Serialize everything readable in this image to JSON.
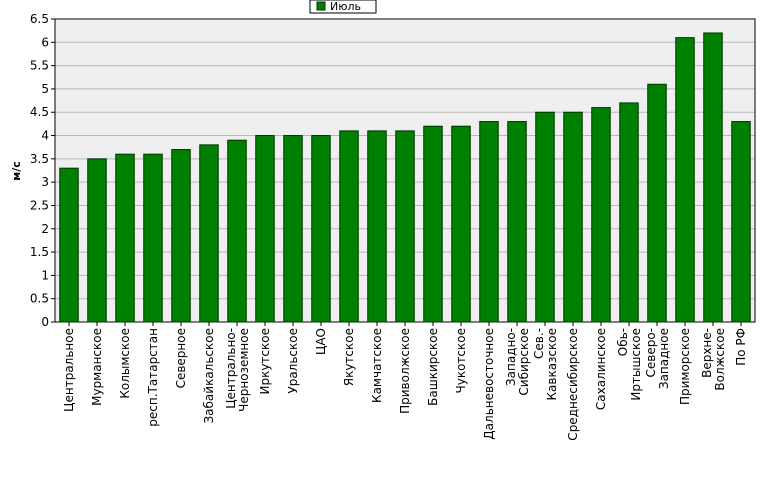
{
  "chart_data": {
    "type": "bar",
    "title": "",
    "xlabel": "",
    "ylabel": "м/с",
    "ylim": [
      0,
      6.5
    ],
    "yticks": [
      "0",
      "0.5",
      "1",
      "1.5",
      "2",
      "2.5",
      "3",
      "3.5",
      "4",
      "4.5",
      "5",
      "5.5",
      "6",
      "6.5"
    ],
    "grid": true,
    "legend_position": "top-center",
    "colors": {
      "bar": "#008000",
      "bar_border": "#003300",
      "plot_bg": "#efefef",
      "grid": "#b8b8b8"
    },
    "categories": [
      "Центральное",
      "Мурманское",
      "Колымское",
      "респ.Татарстан",
      "Северное",
      "Забайкальское",
      "Центрально-Черноземное",
      "Иркутское",
      "Уральское",
      "ЦАО",
      "Якутское",
      "Камчатское",
      "Приволжское",
      "Башкирское",
      "Чукотское",
      "Дальневосточное",
      "Западно-Сибирское",
      "Сев.-Кавказское",
      "Среднесибирское",
      "Сахалинское",
      "Обь-Иртышское",
      "Северо-Западное",
      "Приморское",
      "Верхне-Волжское",
      "По РФ"
    ],
    "series": [
      {
        "name": "Июль",
        "values": [
          3.3,
          3.5,
          3.6,
          3.6,
          3.7,
          3.8,
          3.9,
          4.0,
          4.0,
          4.0,
          4.1,
          4.1,
          4.1,
          4.2,
          4.2,
          4.3,
          4.3,
          4.5,
          4.5,
          4.6,
          4.7,
          5.1,
          6.1,
          6.2,
          4.3
        ]
      }
    ]
  }
}
